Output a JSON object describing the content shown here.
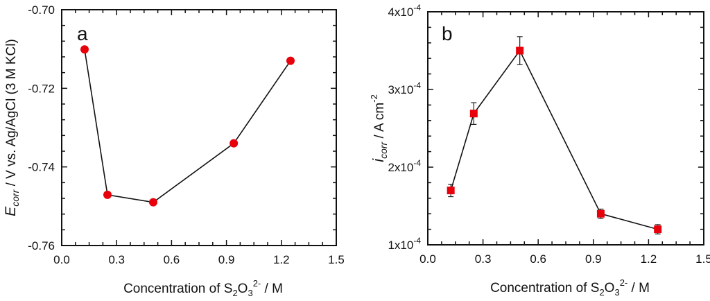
{
  "chart_data": [
    {
      "type": "line",
      "panel_label": "a",
      "title": "",
      "xlabel": "Concentration of S2O3 2- / M",
      "xlabel_parts": {
        "main": "Concentration of S",
        "sub1": "2",
        "mid": "O",
        "sub2": "3",
        "sup": "2-",
        "tail": " / M"
      },
      "ylabel": "Ecorr / V vs. Ag/AgCl (3 M KCl)",
      "ylabel_parts": {
        "sym": "E",
        "sub": "corr",
        "tail": " / V vs. Ag/AgCl (3 M KCl)"
      },
      "xlim": [
        0.0,
        1.5
      ],
      "ylim": [
        -0.76,
        -0.7
      ],
      "x_ticks": [
        0.0,
        0.3,
        0.6,
        0.9,
        1.2,
        1.5
      ],
      "x_tick_labels": [
        "0.0",
        "0.3",
        "0.6",
        "0.9",
        "1.2",
        "1.5"
      ],
      "y_ticks": [
        -0.76,
        -0.74,
        -0.72,
        -0.7
      ],
      "y_tick_labels": [
        "-0.76",
        "-0.74",
        "-0.72",
        "-0.70"
      ],
      "marker": "circle",
      "marker_color": "#e8000b",
      "series": [
        {
          "name": "Ecorr",
          "x": [
            0.125,
            0.25,
            0.5,
            0.94,
            1.25
          ],
          "y": [
            -0.7101,
            -0.7471,
            -0.749,
            -0.734,
            -0.713
          ],
          "yerr": [
            0.0007,
            0.0007,
            0.0007,
            0.0007,
            0.0007
          ]
        }
      ],
      "grid": false,
      "legend": "none"
    },
    {
      "type": "line",
      "panel_label": "b",
      "title": "",
      "xlabel": "Concentration of S2O3 2- / M",
      "xlabel_parts": {
        "main": "Concentration of S",
        "sub1": "2",
        "mid": "O",
        "sub2": "3",
        "sup": "2-",
        "tail": " / M"
      },
      "ylabel": "icorr / A cm-2",
      "ylabel_parts": {
        "sym": "i",
        "sub": "corr",
        "tail": " / A cm",
        "sup": "-2"
      },
      "xlim": [
        0.0,
        1.5
      ],
      "ylim": [
        0.0001,
        0.0004
      ],
      "x_ticks": [
        0.0,
        0.3,
        0.6,
        0.9,
        1.2,
        1.5
      ],
      "x_tick_labels": [
        "0.0",
        "0.3",
        "0.6",
        "0.9",
        "1.2",
        "1.5"
      ],
      "y_ticks": [
        0.0001,
        0.0002,
        0.0003,
        0.0004
      ],
      "y_tick_labels": [
        {
          "base": "1x10",
          "exp": "-4"
        },
        {
          "base": "2x10",
          "exp": "-4"
        },
        {
          "base": "3x10",
          "exp": "-4"
        },
        {
          "base": "4x10",
          "exp": "-4"
        }
      ],
      "marker": "square",
      "marker_color": "#e8000b",
      "series": [
        {
          "name": "icorr",
          "x": [
            0.125,
            0.25,
            0.5,
            0.94,
            1.25
          ],
          "y": [
            0.00017,
            0.000269,
            0.00035,
            0.00014,
            0.00012
          ],
          "yerr": [
            8e-06,
            1.4e-05,
            1.8e-05,
            6e-06,
            6e-06
          ]
        }
      ],
      "grid": false,
      "legend": "none"
    }
  ]
}
